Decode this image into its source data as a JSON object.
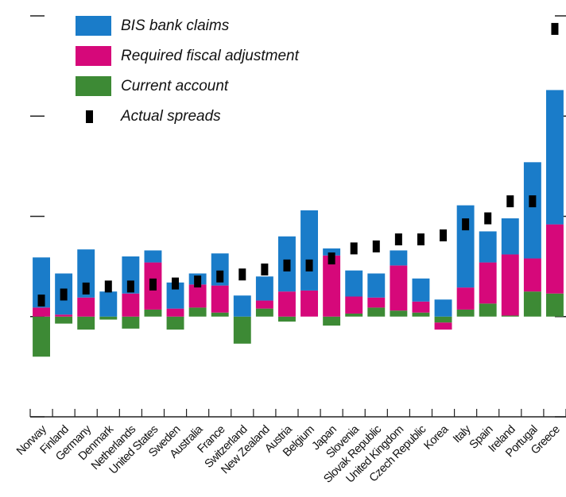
{
  "chart_data": {
    "type": "bar",
    "stacked": true,
    "categories": [
      "Norway",
      "Finland",
      "Germany",
      "Denmark",
      "Netherlands",
      "United States",
      "Sweden",
      "Australia",
      "France",
      "Switzerland",
      "New Zealand",
      "Austria",
      "Belgium",
      "Japan",
      "Slovenia",
      "Slovak Republic",
      "United Kingdom",
      "Czech Republic",
      "Korea",
      "Italy",
      "Spain",
      "Ireland",
      "Portugal",
      "Greece"
    ],
    "series": [
      {
        "name": "BIS bank claims",
        "color": "#1a7cc9",
        "values": [
          0.5,
          0.41,
          0.48,
          0.25,
          0.37,
          0.12,
          0.26,
          0.11,
          0.32,
          0.21,
          0.24,
          0.55,
          0.8,
          0.07,
          0.26,
          0.24,
          0.15,
          0.23,
          0.17,
          0.82,
          0.31,
          0.36,
          0.96,
          1.34
        ]
      },
      {
        "name": "Required fiscal adjustment",
        "color": "#d6087a",
        "values": [
          0.09,
          0.02,
          0.19,
          0,
          0.23,
          0.47,
          0.08,
          0.23,
          0.27,
          0,
          0.08,
          0.25,
          0.26,
          0.61,
          0.17,
          0.1,
          0.45,
          0.11,
          -0.07,
          0.22,
          0.41,
          0.61,
          0.33,
          0.69
        ]
      },
      {
        "name": "Current account",
        "color": "#3d8a35",
        "values": [
          -0.4,
          -0.07,
          -0.13,
          -0.03,
          -0.12,
          0.07,
          -0.13,
          0.09,
          0.04,
          -0.27,
          0.08,
          -0.05,
          0,
          -0.09,
          0.03,
          0.09,
          0.06,
          0.04,
          -0.06,
          0.07,
          0.13,
          0.01,
          0.25,
          0.23
        ]
      },
      {
        "name": "Actual spreads",
        "color": "#000000",
        "type": "scatter",
        "values": [
          0.16,
          0.22,
          0.28,
          0.3,
          0.3,
          0.32,
          0.33,
          0.35,
          0.4,
          0.42,
          0.47,
          0.51,
          0.51,
          0.58,
          0.68,
          0.7,
          0.77,
          0.77,
          0.81,
          0.92,
          0.98,
          1.15,
          1.15,
          2.87
        ]
      }
    ],
    "ylim": [
      -1,
      3
    ],
    "yticks": [
      -1,
      0,
      1,
      2,
      3
    ]
  }
}
